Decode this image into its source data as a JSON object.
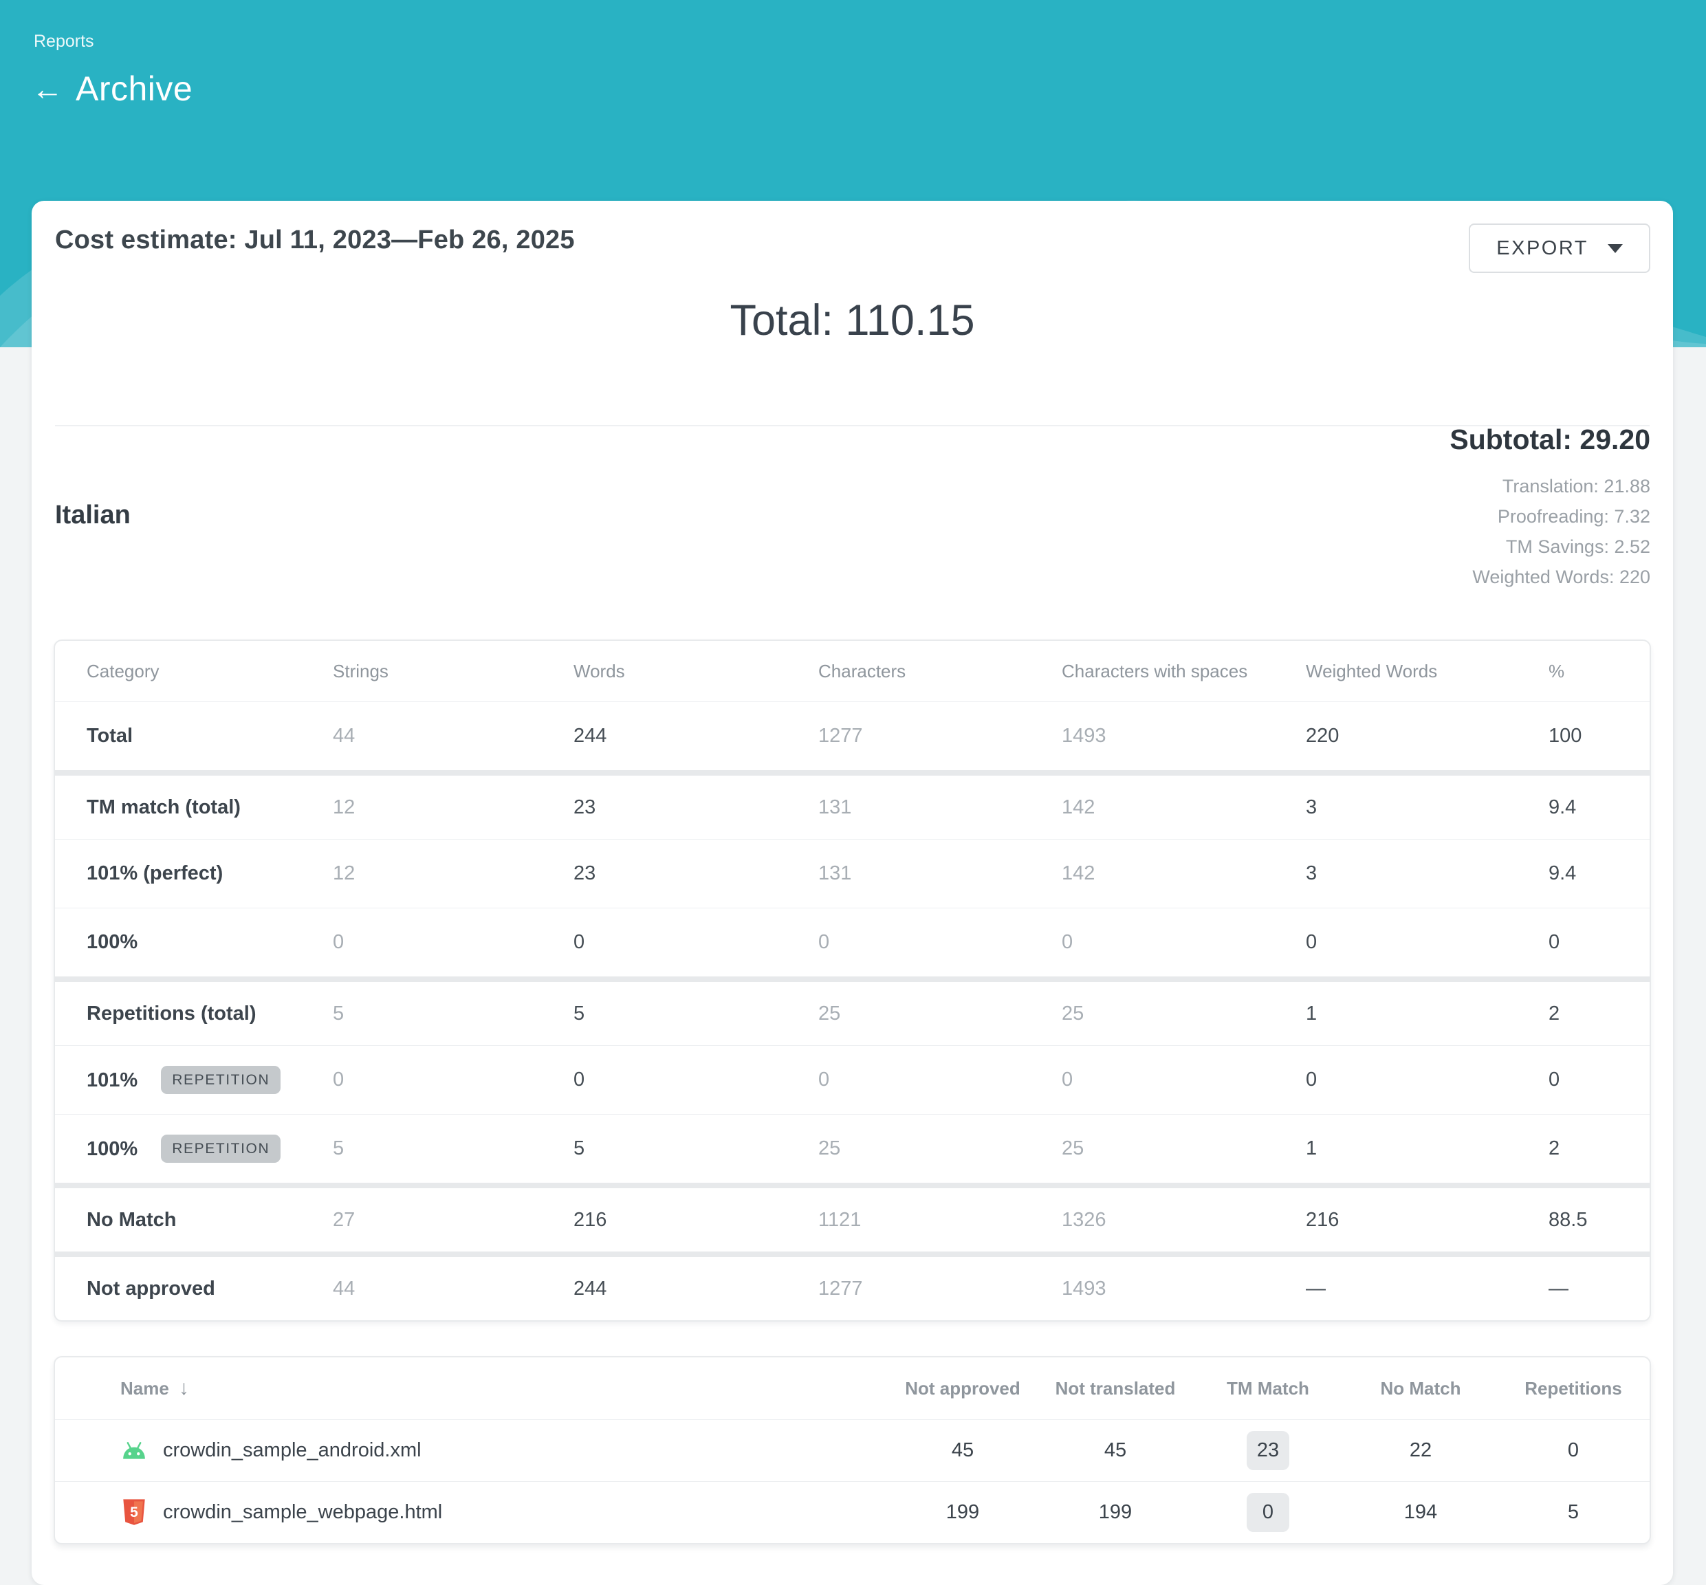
{
  "header": {
    "breadcrumb": "Reports",
    "title": "Archive"
  },
  "report": {
    "title": "Cost estimate: Jul 11, 2023—Feb 26, 2025",
    "export_label": "EXPORT",
    "total": "Total: 110.15"
  },
  "language_section": {
    "language": "Italian",
    "subtotal": "Subtotal: 29.20",
    "details": [
      "Translation: 21.88",
      "Proofreading: 7.32",
      "TM Savings: 2.52",
      "Weighted Words: 220"
    ]
  },
  "category_table": {
    "columns": [
      "Category",
      "Strings",
      "Words",
      "Characters",
      "Characters with spaces",
      "Weighted Words",
      "%"
    ],
    "gray_value_columns": [
      0,
      2,
      3
    ],
    "rows": [
      {
        "label": "Total",
        "badge": "",
        "values": [
          "44",
          "244",
          "1277",
          "1493",
          "220",
          "100"
        ],
        "group_start": false
      },
      {
        "label": "TM match (total)",
        "badge": "",
        "values": [
          "12",
          "23",
          "131",
          "142",
          "3",
          "9.4"
        ],
        "group_start": true
      },
      {
        "label": "101% (perfect)",
        "badge": "",
        "values": [
          "12",
          "23",
          "131",
          "142",
          "3",
          "9.4"
        ],
        "group_start": false
      },
      {
        "label": "100%",
        "badge": "",
        "values": [
          "0",
          "0",
          "0",
          "0",
          "0",
          "0"
        ],
        "group_start": false
      },
      {
        "label": "Repetitions (total)",
        "badge": "",
        "values": [
          "5",
          "5",
          "25",
          "25",
          "1",
          "2"
        ],
        "group_start": true
      },
      {
        "label": "101%",
        "badge": "REPETITION",
        "values": [
          "0",
          "0",
          "0",
          "0",
          "0",
          "0"
        ],
        "group_start": false
      },
      {
        "label": "100%",
        "badge": "REPETITION",
        "values": [
          "5",
          "5",
          "25",
          "25",
          "1",
          "2"
        ],
        "group_start": false
      },
      {
        "label": "No Match",
        "badge": "",
        "values": [
          "27",
          "216",
          "1121",
          "1326",
          "216",
          "88.5"
        ],
        "group_start": true
      },
      {
        "label": "Not approved",
        "badge": "",
        "values": [
          "44",
          "244",
          "1277",
          "1493",
          "—",
          "—"
        ],
        "group_start": true
      }
    ]
  },
  "files_table": {
    "columns": [
      "Name",
      "Not approved",
      "Not translated",
      "TM Match",
      "No Match",
      "Repetitions"
    ],
    "badge_column": 2,
    "rows": [
      {
        "icon": "android-icon",
        "name": "crowdin_sample_android.xml",
        "values": [
          "45",
          "45",
          "23",
          "22",
          "0"
        ]
      },
      {
        "icon": "html5-icon",
        "name": "crowdin_sample_webpage.html",
        "values": [
          "199",
          "199",
          "0",
          "194",
          "5"
        ]
      }
    ]
  },
  "colors": {
    "accent_teal": "#29b2c3",
    "android_green": "#57d38c",
    "html5_orange": "#e8543f",
    "badge_gray": "#c5c9cc"
  }
}
